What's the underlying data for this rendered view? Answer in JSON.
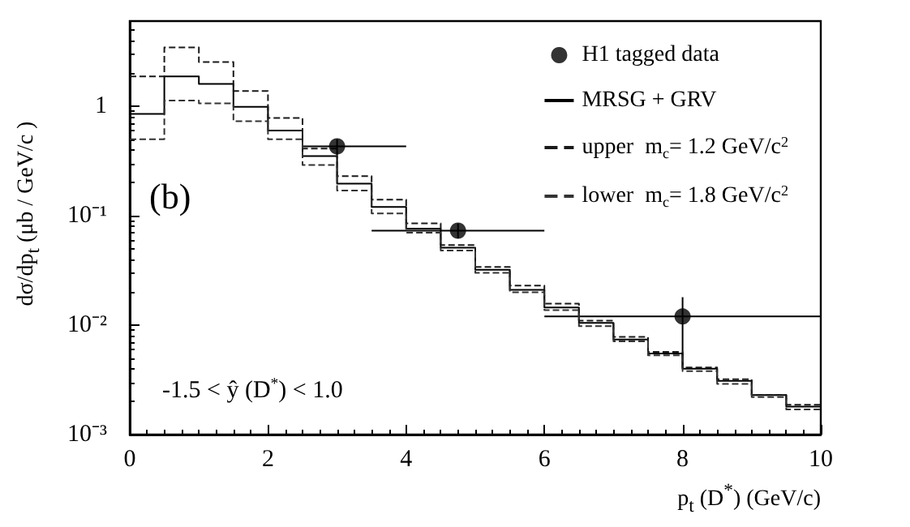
{
  "chart_data": {
    "type": "histogram",
    "xlabel": "p$_{t}$ (D$^{*}$)    (GeV/c)",
    "ylabel": "dσ/dp$_{t}$   (μb / GeV/c )",
    "annotations": [
      "(b)",
      "-1.5 < ŷ (D$^{*}$) < 1.0"
    ],
    "bins": [
      0,
      0.5,
      1,
      1.5,
      2,
      2.5,
      3,
      3.5,
      4,
      4.5,
      5,
      5.5,
      6,
      6.5,
      7,
      7.5,
      8,
      8.5,
      9,
      9.5,
      10
    ],
    "series": [
      {
        "type": "scatter",
        "name": "H1 tagged data",
        "color": "#000000",
        "marker": "circle",
        "x": [
          3,
          4.75,
          8
        ],
        "values": [
          0.43,
          0.073,
          0.012
        ],
        "errors": [
          [
            0.36,
            0.5
          ],
          [
            0.062,
            0.085
          ],
          [
            0.004,
            0.018
          ]
        ],
        "xerrors": [
          [
            2.5,
            4
          ],
          [
            3.5,
            6
          ],
          [
            6,
            10
          ]
        ]
      },
      {
        "name": "MRSG + GRV",
        "color": "#000000",
        "line_style": "solid",
        "values": [
          0.85,
          1.87,
          1.6,
          0.99,
          0.6,
          0.35,
          0.196,
          0.12,
          0.076,
          0.051,
          0.032,
          0.021,
          0.0145,
          0.0105,
          0.0074,
          0.0055,
          0.004,
          0.0031,
          0.0023,
          0.0018
        ]
      },
      {
        "name": "upper  m$_{c}$= 1.2 GeV/c$^{2}$",
        "color": "#1a1a1a",
        "line_style": "dashed",
        "values": [
          1.87,
          3.44,
          2.53,
          1.38,
          0.78,
          0.41,
          0.23,
          0.14,
          0.085,
          0.054,
          0.034,
          0.023,
          0.0157,
          0.011,
          0.0078,
          0.0057,
          0.0041,
          0.0032,
          0.0023,
          0.00187
        ]
      },
      {
        "name": "lower  m$_{c}$= 1.8 GeV/c$^{2}$",
        "color": "#333333",
        "line_style": "dashed",
        "values": [
          0.5,
          1.13,
          1.06,
          0.73,
          0.5,
          0.29,
          0.17,
          0.105,
          0.07,
          0.048,
          0.03,
          0.02,
          0.0137,
          0.0098,
          0.0071,
          0.0053,
          0.0038,
          0.0029,
          0.0022,
          0.0017
        ]
      }
    ],
    "xlim": [
      0,
      10
    ],
    "xticks": [
      0,
      2,
      4,
      6,
      8,
      10
    ],
    "log": "y",
    "ylim": [
      0.001,
      6
    ],
    "yticks": [
      {
        "value": 0.001,
        "label": "10⁻³"
      },
      {
        "value": 0.01,
        "label": "10⁻²"
      },
      {
        "value": 0.1,
        "label": "10⁻¹"
      },
      1
    ],
    "grid": false,
    "legend": "top right"
  }
}
